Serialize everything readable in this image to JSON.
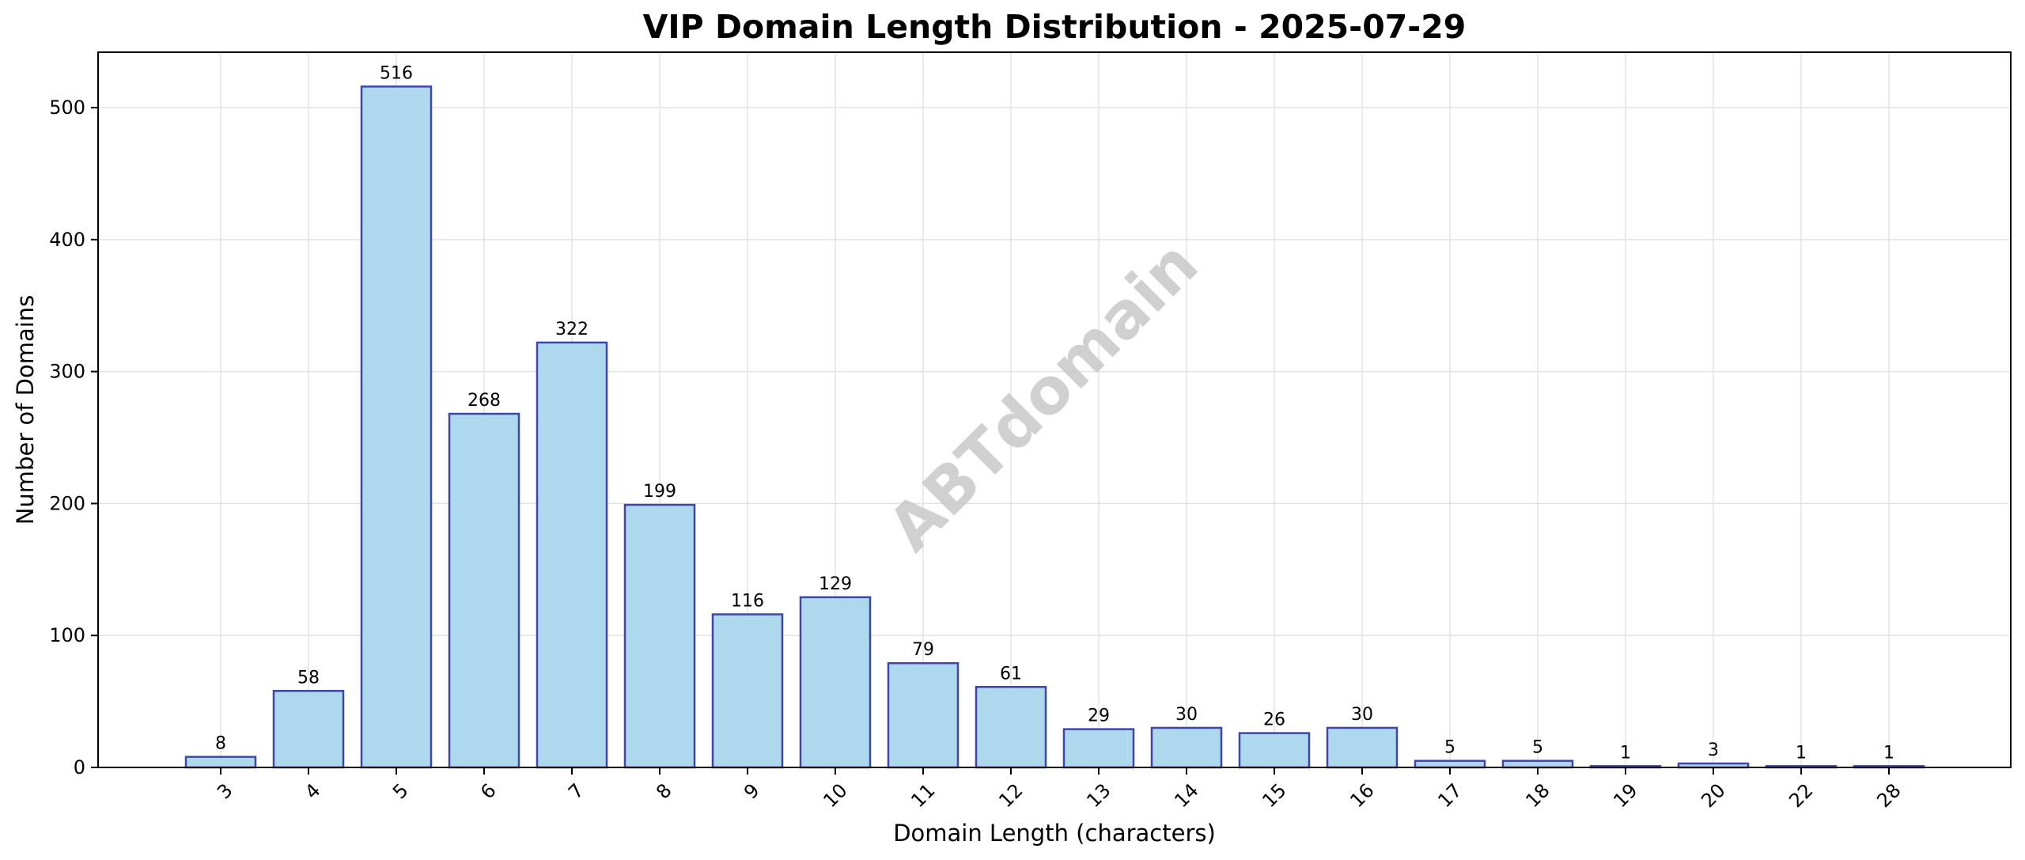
{
  "chart_data": {
    "type": "bar",
    "title": "VIP Domain Length Distribution - 2025-07-29",
    "xlabel": "Domain Length (characters)",
    "ylabel": "Number of Domains",
    "categories": [
      "3",
      "4",
      "5",
      "6",
      "7",
      "8",
      "9",
      "10",
      "11",
      "12",
      "13",
      "14",
      "15",
      "16",
      "17",
      "18",
      "19",
      "20",
      "22",
      "28"
    ],
    "values": [
      8,
      58,
      516,
      268,
      322,
      199,
      116,
      129,
      79,
      61,
      29,
      30,
      26,
      30,
      5,
      5,
      1,
      3,
      1,
      1
    ],
    "ylim": [
      0,
      542
    ],
    "yticks": [
      0,
      100,
      200,
      300,
      400,
      500
    ],
    "grid": true,
    "bar_color": "#add8ee",
    "bar_edge_color": "#3f46a8",
    "watermark": "ABTdomain"
  }
}
